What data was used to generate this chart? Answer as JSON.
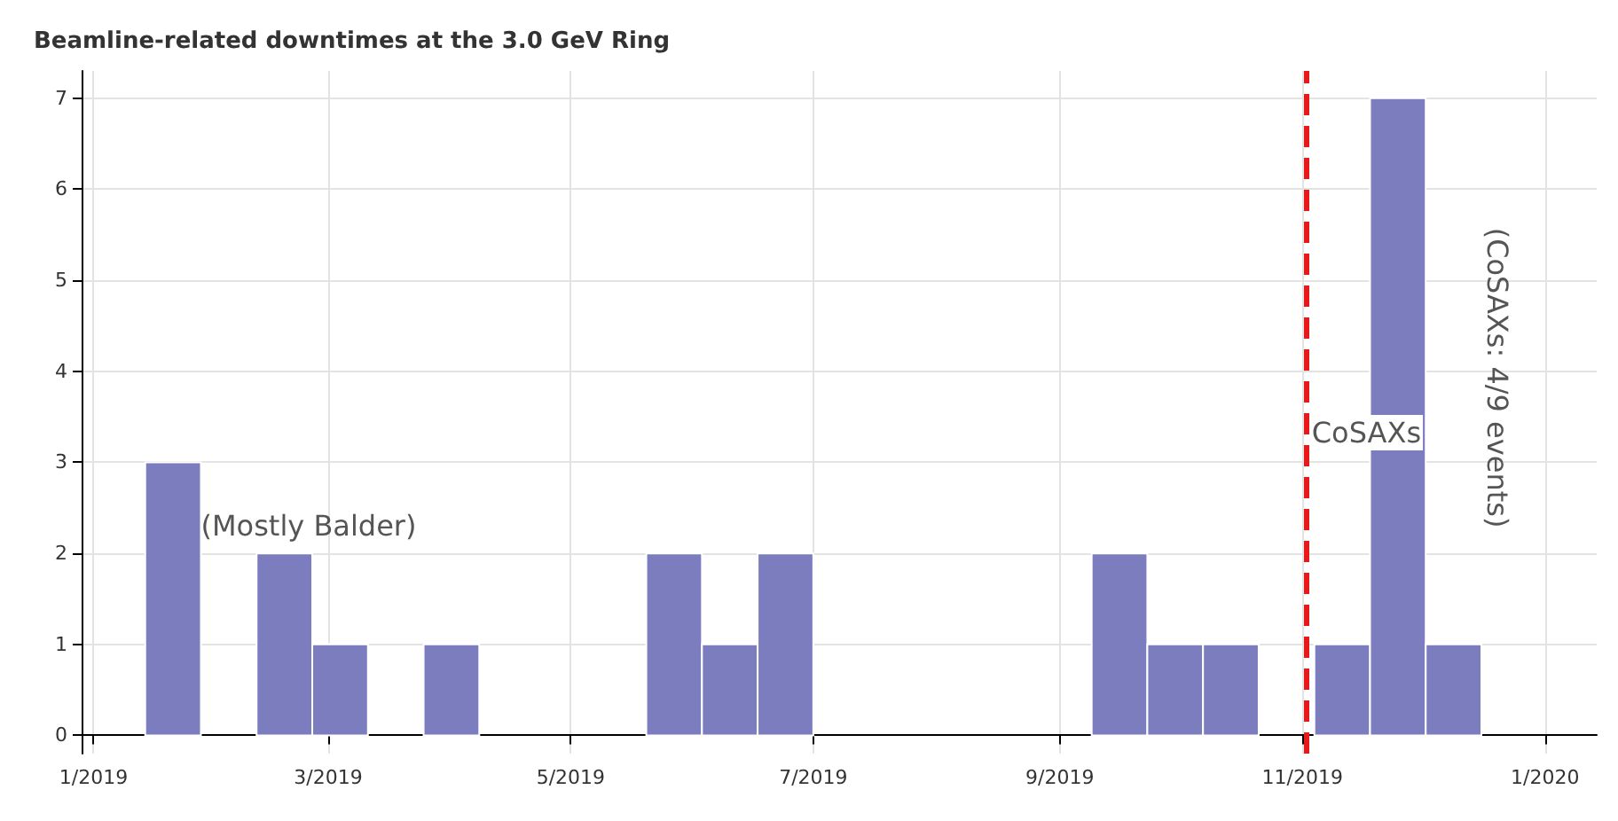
{
  "chart_data": {
    "type": "histogram",
    "title": "Beamline-related downtimes at the 3.0 GeV Ring",
    "bins": [
      "2019-01-14",
      "2019-01-28",
      "2019-02-11",
      "2019-02-25",
      "2019-03-11",
      "2019-03-25",
      "2019-04-08",
      "2019-04-22",
      "2019-05-06",
      "2019-05-20",
      "2019-06-03",
      "2019-06-17",
      "2019-07-01",
      "2019-07-15",
      "2019-07-29",
      "2019-08-12",
      "2019-08-26",
      "2019-09-09",
      "2019-09-23",
      "2019-10-07",
      "2019-10-21",
      "2019-11-04",
      "2019-11-18",
      "2019-12-02",
      "2019-12-16"
    ],
    "values": [
      3,
      0,
      2,
      1,
      0,
      1,
      0,
      0,
      0,
      2,
      1,
      2,
      0,
      0,
      0,
      0,
      0,
      2,
      1,
      1,
      0,
      1,
      7,
      1
    ],
    "color": "#7b7dbf",
    "xlim": [
      "2018-12-29",
      "2020-01-14"
    ],
    "xticks": [
      {
        "value": "2019-01-01",
        "label": "1/2019"
      },
      {
        "value": "2019-03-01",
        "label": "3/2019"
      },
      {
        "value": "2019-05-01",
        "label": "5/2019"
      },
      {
        "value": "2019-07-01",
        "label": "7/2019"
      },
      {
        "value": "2019-09-01",
        "label": "9/2019"
      },
      {
        "value": "2019-11-01",
        "label": "11/2019"
      },
      {
        "value": "2020-01-01",
        "label": "1/2020"
      }
    ],
    "ylim": [
      -0.2,
      7.3
    ],
    "yticks": [
      0,
      1,
      2,
      3,
      4,
      5,
      6,
      7
    ],
    "grid": true,
    "ref_lines": [
      {
        "axis": "x",
        "value": "2019-11-02",
        "label": "CoSAXs",
        "color": "#e8191a",
        "line_style": "dashed"
      }
    ],
    "annotations": [
      {
        "text": "(Mostly Balder)",
        "x": "2019-01-28",
        "y": 2.3
      },
      "(CoSAXs: 4/9 events)"
    ]
  }
}
